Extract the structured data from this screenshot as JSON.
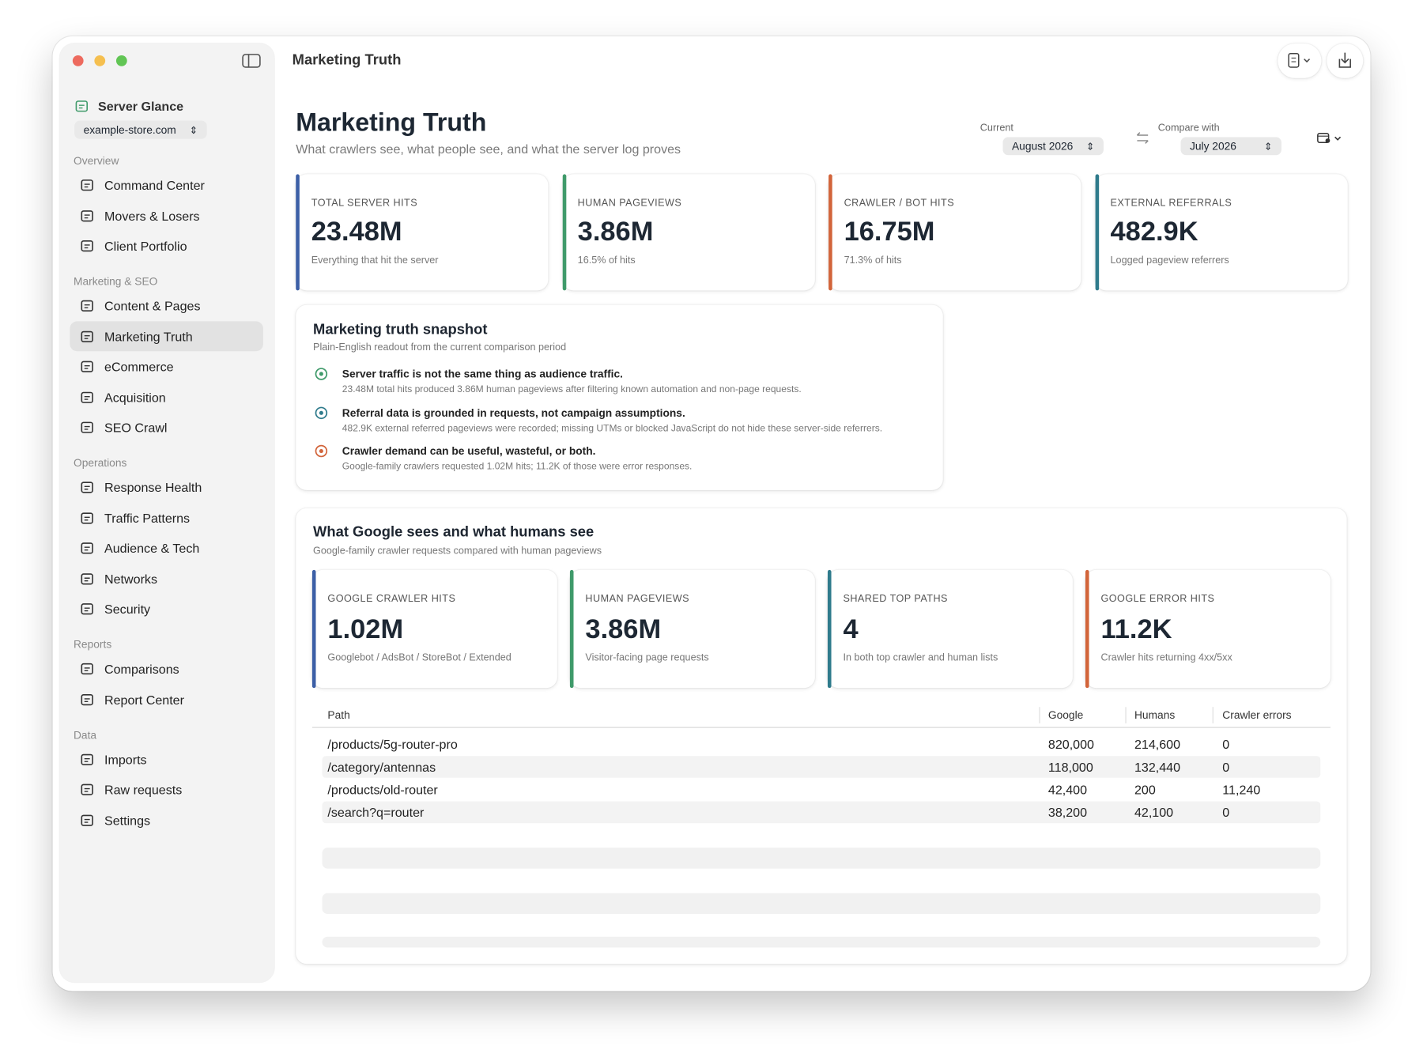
{
  "window": {
    "title": "Marketing Truth"
  },
  "sidebar": {
    "app_name": "Server Glance",
    "site": "example-store.com",
    "sections": [
      {
        "label": "Overview",
        "items": [
          {
            "label": "Command Center"
          },
          {
            "label": "Movers & Losers"
          },
          {
            "label": "Client Portfolio"
          }
        ]
      },
      {
        "label": "Marketing & SEO",
        "items": [
          {
            "label": "Content & Pages"
          },
          {
            "label": "Marketing Truth",
            "selected": true
          },
          {
            "label": "eCommerce"
          },
          {
            "label": "Acquisition"
          },
          {
            "label": "SEO Crawl"
          }
        ]
      },
      {
        "label": "Operations",
        "items": [
          {
            "label": "Response Health"
          },
          {
            "label": "Traffic Patterns"
          },
          {
            "label": "Audience & Tech"
          },
          {
            "label": "Networks"
          },
          {
            "label": "Security"
          }
        ]
      },
      {
        "label": "Reports",
        "items": [
          {
            "label": "Comparisons"
          },
          {
            "label": "Report Center"
          }
        ]
      },
      {
        "label": "Data",
        "items": [
          {
            "label": "Imports"
          },
          {
            "label": "Raw requests"
          },
          {
            "label": "Settings"
          }
        ]
      }
    ]
  },
  "header": {
    "title": "Marketing Truth",
    "subtitle": "What crawlers see, what people see, and what the server log proves",
    "current_label": "Current",
    "current_value": "August 2026",
    "compare_label": "Compare with",
    "compare_value": "July 2026"
  },
  "kpis": [
    {
      "label": "TOTAL SERVER HITS",
      "value": "23.48M",
      "note": "Everything that hit the server",
      "color": "#3c5fa6"
    },
    {
      "label": "HUMAN PAGEVIEWS",
      "value": "3.86M",
      "note": "16.5% of hits",
      "color": "#3f9a6a"
    },
    {
      "label": "CRAWLER / BOT HITS",
      "value": "16.75M",
      "note": "71.3% of hits",
      "color": "#d2643a"
    },
    {
      "label": "EXTERNAL REFERRALS",
      "value": "482.9K",
      "note": "Logged pageview referrers",
      "color": "#2f7b8c"
    }
  ],
  "snapshot": {
    "title": "Marketing truth snapshot",
    "subtitle": "Plain-English readout from the current comparison period",
    "items": [
      {
        "heading": "Server traffic is not the same thing as audience traffic.",
        "detail": "23.48M total hits produced 3.86M human pageviews after filtering known automation and non-page requests.",
        "color": "#3f9a6a"
      },
      {
        "heading": "Referral data is grounded in requests, not campaign assumptions.",
        "detail": "482.9K external referred pageviews were recorded; missing UTMs or blocked JavaScript do not hide these server-side referrers.",
        "color": "#2f7b8c"
      },
      {
        "heading": "Crawler demand can be useful, wasteful, or both.",
        "detail": "Google-family crawlers requested 1.02M hits; 11.2K of those were error responses.",
        "color": "#d2643a"
      }
    ]
  },
  "google": {
    "title": "What Google sees and what humans see",
    "subtitle": "Google-family crawler requests compared with human pageviews",
    "kpis": [
      {
        "label": "GOOGLE CRAWLER HITS",
        "value": "1.02M",
        "note": "Googlebot / AdsBot / StoreBot / Extended",
        "color": "#3c5fa6"
      },
      {
        "label": "HUMAN PAGEVIEWS",
        "value": "3.86M",
        "note": "Visitor-facing page requests",
        "color": "#3f9a6a"
      },
      {
        "label": "SHARED TOP PATHS",
        "value": "4",
        "note": "In both top crawler and human lists",
        "color": "#2f7b8c"
      },
      {
        "label": "GOOGLE ERROR HITS",
        "value": "11.2K",
        "note": "Crawler hits returning 4xx/5xx",
        "color": "#d2643a"
      }
    ],
    "table": {
      "columns": [
        "Path",
        "Google",
        "Humans",
        "Crawler errors"
      ],
      "rows": [
        [
          "/products/5g-router-pro",
          "820,000",
          "214,600",
          "0"
        ],
        [
          "/category/antennas",
          "118,000",
          "132,440",
          "0"
        ],
        [
          "/products/old-router",
          "42,400",
          "200",
          "11,240"
        ],
        [
          "/search?q=router",
          "38,200",
          "42,100",
          "0"
        ]
      ]
    }
  }
}
